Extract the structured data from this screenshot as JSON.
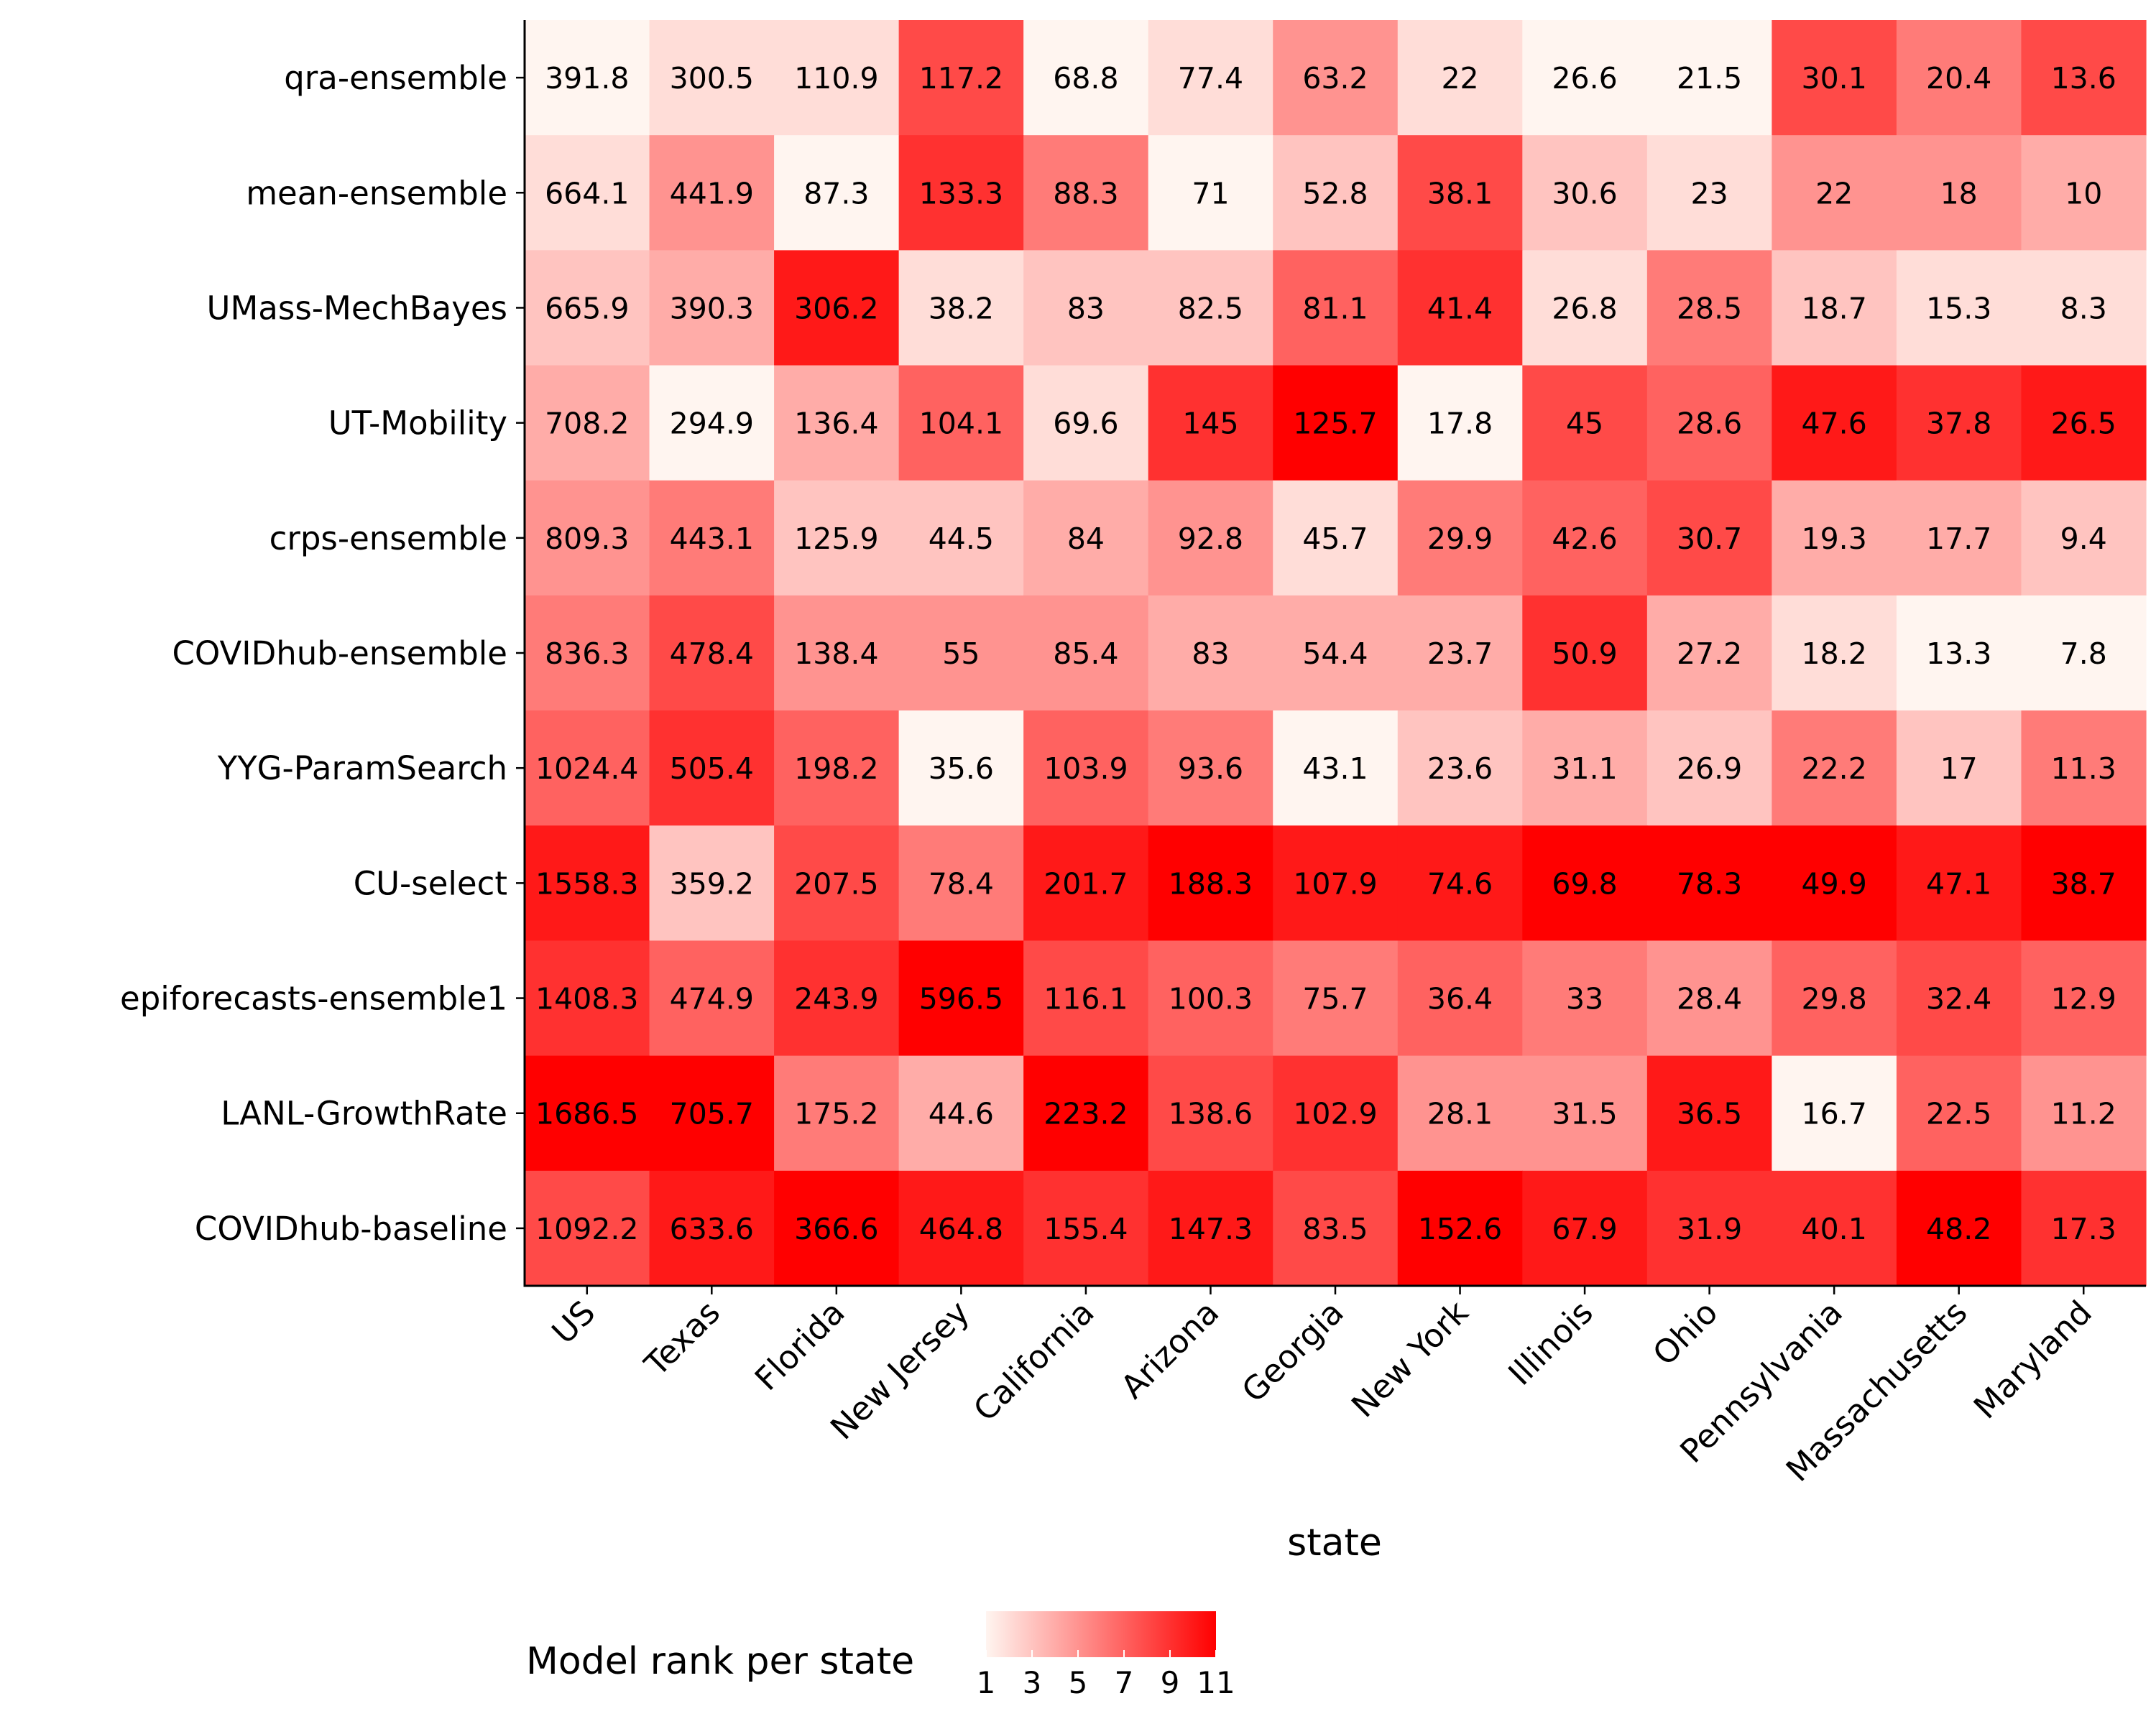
{
  "chart_data": {
    "type": "heatmap",
    "title": "",
    "xlabel": "state",
    "ylabel": "",
    "legend_title": "Model rank per state",
    "legend_position": "bottom",
    "legend_ticks": [
      1,
      3,
      5,
      7,
      9,
      11
    ],
    "color_low": "#fff5f0",
    "color_high": "#ff0000",
    "x": [
      "US",
      "Texas",
      "Florida",
      "New Jersey",
      "California",
      "Arizona",
      "Georgia",
      "New York",
      "Illinois",
      "Ohio",
      "Pennsylvania",
      "Massachusetts",
      "Maryland"
    ],
    "y": [
      "qra-ensemble",
      "mean-ensemble",
      "UMass-MechBayes",
      "UT-Mobility",
      "crps-ensemble",
      "COVIDhub-ensemble",
      "YYG-ParamSearch",
      "CU-select",
      "epiforecasts-ensemble1",
      "LANL-GrowthRate",
      "COVIDhub-baseline"
    ],
    "values": [
      [
        391.8,
        300.5,
        110.9,
        117.2,
        68.8,
        77.4,
        63.2,
        22,
        26.6,
        21.5,
        30.1,
        20.4,
        13.6
      ],
      [
        664.1,
        441.9,
        87.3,
        133.3,
        88.3,
        71,
        52.8,
        38.1,
        30.6,
        23,
        22,
        18,
        10
      ],
      [
        665.9,
        390.3,
        306.2,
        38.2,
        83,
        82.5,
        81.1,
        41.4,
        26.8,
        28.5,
        18.7,
        15.3,
        8.3
      ],
      [
        708.2,
        294.9,
        136.4,
        104.1,
        69.6,
        145,
        125.7,
        17.8,
        45,
        28.6,
        47.6,
        37.8,
        26.5
      ],
      [
        809.3,
        443.1,
        125.9,
        44.5,
        84,
        92.8,
        45.7,
        29.9,
        42.6,
        30.7,
        19.3,
        17.7,
        9.4
      ],
      [
        836.3,
        478.4,
        138.4,
        55,
        85.4,
        83,
        54.4,
        23.7,
        50.9,
        27.2,
        18.2,
        13.3,
        7.8
      ],
      [
        1024.4,
        505.4,
        198.2,
        35.6,
        103.9,
        93.6,
        43.1,
        23.6,
        31.1,
        26.9,
        22.2,
        17,
        11.3
      ],
      [
        1558.3,
        359.2,
        207.5,
        78.4,
        201.7,
        188.3,
        107.9,
        74.6,
        69.8,
        78.3,
        49.9,
        47.1,
        38.7
      ],
      [
        1408.3,
        474.9,
        243.9,
        596.5,
        116.1,
        100.3,
        75.7,
        36.4,
        33,
        28.4,
        29.8,
        32.4,
        12.9
      ],
      [
        1686.5,
        705.7,
        175.2,
        44.6,
        223.2,
        138.6,
        102.9,
        28.1,
        31.5,
        36.5,
        16.7,
        22.5,
        11.2
      ],
      [
        1092.2,
        633.6,
        366.6,
        464.8,
        155.4,
        147.3,
        83.5,
        152.6,
        67.9,
        31.9,
        40.1,
        48.2,
        17.3
      ]
    ]
  }
}
